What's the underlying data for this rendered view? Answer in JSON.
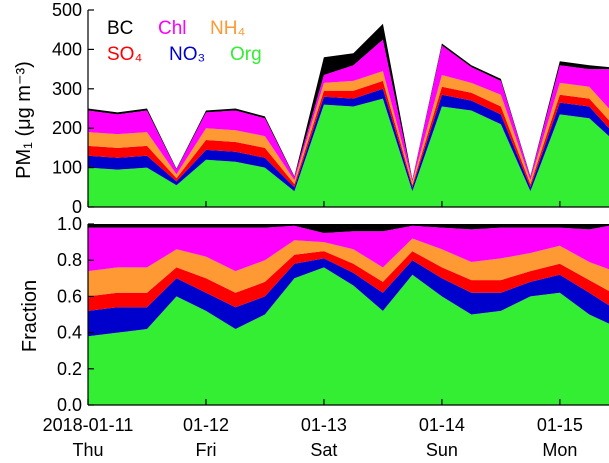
{
  "chart_data": [
    {
      "type": "area",
      "stacked": true,
      "ylabel": "PM₁ (μg m⁻³)",
      "ylim": [
        0,
        500
      ],
      "yticks": [
        0,
        100,
        200,
        300,
        400,
        500
      ],
      "x_ticks": [
        "2018-01-11",
        "01-12",
        "01-13",
        "01-14",
        "01-15"
      ],
      "x_day_labels": [
        "Thu",
        "Fri",
        "Sat",
        "Sun",
        "Mon"
      ],
      "xlim": [
        "2018-01-11 00:00",
        "2018-01-15 10:00"
      ],
      "legend_placement": "top-left",
      "legend": [
        {
          "label": "BC",
          "color": "#000000"
        },
        {
          "label": "Chl",
          "color": "#ff00ff"
        },
        {
          "label": "NH₄",
          "color": "#ff9933"
        },
        {
          "label": "SO₄",
          "color": "#ff0000"
        },
        {
          "label": "NO₃",
          "color": "#0000cc"
        },
        {
          "label": "Org",
          "color": "#33ee33"
        }
      ],
      "x_hours": [
        0,
        6,
        12,
        18,
        24,
        30,
        36,
        42,
        48,
        54,
        60,
        66,
        72,
        78,
        84,
        90,
        96,
        102,
        106
      ],
      "series": [
        {
          "name": "Org",
          "color": "#33ee33",
          "values": [
            100,
            95,
            100,
            55,
            120,
            115,
            100,
            40,
            260,
            255,
            275,
            40,
            255,
            245,
            210,
            40,
            235,
            225,
            180
          ]
        },
        {
          "name": "NO₃",
          "color": "#0000cc",
          "values": [
            30,
            30,
            30,
            10,
            25,
            25,
            25,
            10,
            20,
            20,
            25,
            10,
            30,
            25,
            25,
            10,
            30,
            30,
            20
          ]
        },
        {
          "name": "SO₄",
          "color": "#ff0000",
          "values": [
            25,
            25,
            25,
            8,
            25,
            25,
            25,
            8,
            15,
            20,
            20,
            6,
            20,
            20,
            20,
            8,
            20,
            20,
            20
          ]
        },
        {
          "name": "NH₄",
          "color": "#ff9933",
          "values": [
            35,
            35,
            35,
            10,
            30,
            30,
            30,
            10,
            20,
            25,
            25,
            8,
            30,
            25,
            30,
            10,
            30,
            30,
            30
          ]
        },
        {
          "name": "Chl",
          "color": "#ff00ff",
          "values": [
            55,
            50,
            55,
            12,
            40,
            50,
            45,
            8,
            20,
            40,
            80,
            4,
            75,
            40,
            35,
            8,
            45,
            45,
            100
          ]
        },
        {
          "name": "BC",
          "color": "#000000",
          "values": [
            5,
            5,
            5,
            2,
            5,
            5,
            5,
            2,
            45,
            30,
            40,
            2,
            5,
            5,
            5,
            2,
            10,
            10,
            5
          ]
        }
      ]
    },
    {
      "type": "area",
      "stacked": true,
      "ylabel": "Fraction",
      "ylim": [
        0,
        1.0
      ],
      "yticks": [
        0,
        0.2,
        0.4,
        0.6,
        0.8,
        1.0
      ],
      "x_ticks": [
        "2018-01-11",
        "01-12",
        "01-13",
        "01-14",
        "01-15"
      ],
      "x_day_labels": [
        "Thu",
        "Fri",
        "Sat",
        "Sun",
        "Mon"
      ],
      "xlim": [
        "2018-01-11 00:00",
        "2018-01-15 10:00"
      ],
      "x_hours": [
        0,
        6,
        12,
        18,
        24,
        30,
        36,
        42,
        48,
        54,
        60,
        66,
        72,
        78,
        84,
        90,
        96,
        102,
        106
      ],
      "series": [
        {
          "name": "Org",
          "color": "#33ee33",
          "values": [
            0.38,
            0.4,
            0.42,
            0.6,
            0.52,
            0.42,
            0.5,
            0.7,
            0.76,
            0.66,
            0.52,
            0.72,
            0.6,
            0.5,
            0.52,
            0.6,
            0.62,
            0.5,
            0.45
          ]
        },
        {
          "name": "NO₃",
          "color": "#0000cc",
          "values": [
            0.14,
            0.14,
            0.12,
            0.1,
            0.1,
            0.12,
            0.1,
            0.08,
            0.05,
            0.07,
            0.1,
            0.08,
            0.1,
            0.12,
            0.1,
            0.08,
            0.1,
            0.12,
            0.1
          ]
        },
        {
          "name": "SO₄",
          "color": "#ff0000",
          "values": [
            0.08,
            0.08,
            0.08,
            0.06,
            0.08,
            0.08,
            0.08,
            0.05,
            0.04,
            0.05,
            0.06,
            0.05,
            0.06,
            0.07,
            0.07,
            0.06,
            0.06,
            0.07,
            0.08
          ]
        },
        {
          "name": "NH₄",
          "color": "#ff9933",
          "values": [
            0.14,
            0.14,
            0.14,
            0.1,
            0.12,
            0.12,
            0.12,
            0.08,
            0.05,
            0.08,
            0.08,
            0.07,
            0.1,
            0.1,
            0.12,
            0.1,
            0.1,
            0.1,
            0.12
          ]
        },
        {
          "name": "Chl",
          "color": "#ff00ff",
          "values": [
            0.24,
            0.22,
            0.22,
            0.12,
            0.16,
            0.24,
            0.18,
            0.08,
            0.05,
            0.1,
            0.2,
            0.07,
            0.12,
            0.18,
            0.17,
            0.14,
            0.1,
            0.18,
            0.24
          ]
        },
        {
          "name": "BC",
          "color": "#000000",
          "values": [
            0.02,
            0.02,
            0.02,
            0.02,
            0.02,
            0.02,
            0.02,
            0.01,
            0.05,
            0.04,
            0.04,
            0.01,
            0.02,
            0.03,
            0.02,
            0.02,
            0.02,
            0.03,
            0.01
          ]
        }
      ]
    }
  ]
}
